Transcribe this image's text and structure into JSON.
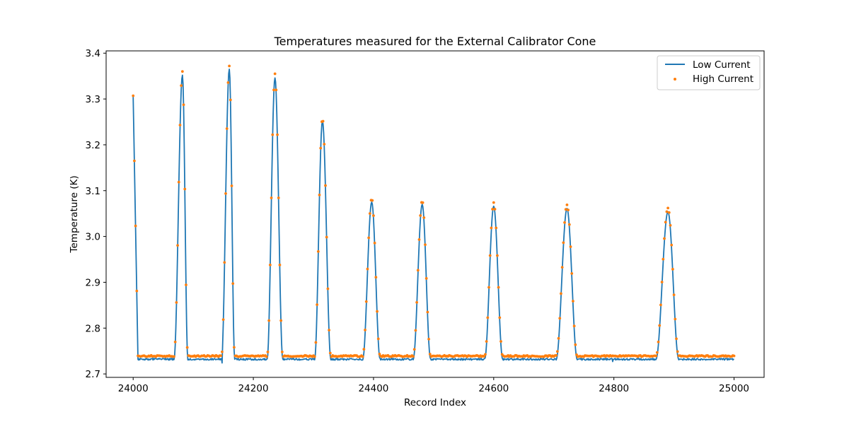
{
  "chart_data": {
    "type": "line",
    "title": "Temperatures measured for the External Calibrator Cone",
    "xlabel": "Record Index",
    "ylabel": "Temperature (K)",
    "xlim": [
      23955,
      25050
    ],
    "ylim": [
      2.6925,
      3.405
    ],
    "xticks": [
      24000,
      24200,
      24400,
      24600,
      24800,
      25000
    ],
    "xtick_labels": [
      "24000",
      "24200",
      "24400",
      "24600",
      "24800",
      "25000"
    ],
    "yticks": [
      2.7,
      2.8,
      2.9,
      3.0,
      3.1,
      3.2,
      3.3,
      3.4
    ],
    "ytick_labels": [
      "2.7",
      "2.8",
      "2.9",
      "3.0",
      "3.1",
      "3.2",
      "3.3",
      "3.4"
    ],
    "grid": false,
    "legend_position": "top-right",
    "baseline": {
      "low_current": 2.732,
      "high_current": 2.739
    },
    "first_decay": {
      "start_x": 24000,
      "end_x": 24008,
      "low_current_start": 3.305,
      "high_current_start": 3.307
    },
    "peaks": [
      {
        "x": 24082,
        "low_current": 3.352,
        "high_current": 3.36,
        "rise": 14,
        "fall": 9
      },
      {
        "x": 24160,
        "low_current": 3.365,
        "high_current": 3.372,
        "rise": 13,
        "fall": 9
      },
      {
        "x": 24236,
        "low_current": 3.346,
        "high_current": 3.355,
        "rise": 13,
        "fall": 13
      },
      {
        "x": 24315,
        "low_current": 3.252,
        "high_current": 3.258,
        "rise": 13,
        "fall": 14
      },
      {
        "x": 24397,
        "low_current": 3.075,
        "high_current": 3.083,
        "rise": 15,
        "fall": 14
      },
      {
        "x": 24481,
        "low_current": 3.07,
        "high_current": 3.078,
        "rise": 15,
        "fall": 14
      },
      {
        "x": 24600,
        "low_current": 3.066,
        "high_current": 3.074,
        "rise": 15,
        "fall": 15
      },
      {
        "x": 24722,
        "low_current": 3.061,
        "high_current": 3.069,
        "rise": 18,
        "fall": 17
      },
      {
        "x": 24890,
        "low_current": 3.054,
        "high_current": 3.062,
        "rise": 20,
        "fall": 18
      }
    ],
    "x_range": [
      24000,
      25000
    ],
    "series": [
      {
        "name": "Low Current",
        "kind": "line",
        "color": "#1f77b4"
      },
      {
        "name": "High Current",
        "kind": "scatter",
        "color": "#ff7f0e"
      }
    ]
  }
}
